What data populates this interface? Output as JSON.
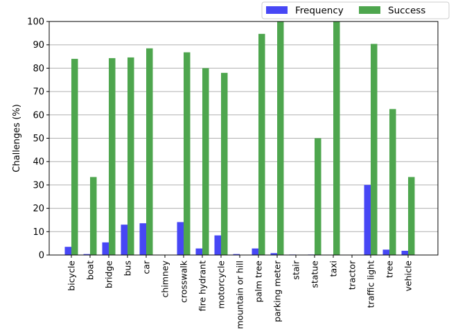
{
  "chart_data": {
    "type": "bar",
    "title": "",
    "xlabel": "",
    "ylabel": "Challenges (%)",
    "ylim": [
      0,
      100
    ],
    "yticks": [
      0,
      10,
      20,
      30,
      40,
      50,
      60,
      70,
      80,
      90,
      100
    ],
    "grid": "horizontal",
    "legend_position": "top-right, above plot",
    "categories": [
      "bicycle",
      "boat",
      "bridge",
      "bus",
      "car",
      "chimney",
      "crosswalk",
      "fire hydrant",
      "motorcycle",
      "mountain or hill",
      "palm tree",
      "parking meter",
      "stair",
      "statue",
      "taxi",
      "tractor",
      "traffic light",
      "tree",
      "vehicle"
    ],
    "series": [
      {
        "name": "Frequency",
        "color": "#4747f5",
        "values": [
          3.5,
          0.4,
          5.4,
          13.0,
          13.6,
          0.0,
          14.1,
          2.8,
          8.4,
          0.4,
          2.8,
          0.8,
          0.2,
          0.2,
          0.1,
          0.0,
          30.0,
          2.3,
          1.8
        ]
      },
      {
        "name": "Success",
        "color": "#4ea64e",
        "values": [
          84.0,
          33.4,
          84.3,
          84.6,
          88.5,
          0.0,
          86.8,
          80.0,
          78.0,
          0.0,
          94.7,
          100.0,
          0.0,
          50.0,
          100.0,
          0.0,
          90.4,
          62.5,
          33.4
        ]
      }
    ]
  }
}
